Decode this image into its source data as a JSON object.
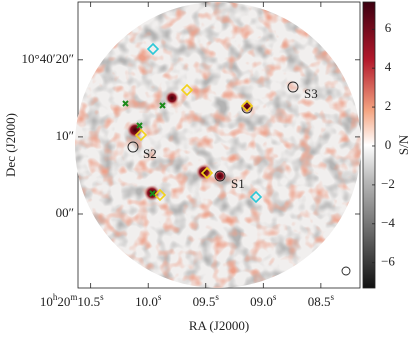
{
  "chart_data": {
    "type": "image",
    "xlabel": "RA (J2000)",
    "ylabel": "Dec (J2000)",
    "colorbar_label": "S/N",
    "xlim": [
      10.61,
      8.16
    ],
    "ylim": [
      -9.6,
      27.5
    ],
    "xticks": [
      {
        "value": 10.5,
        "label": "10h20m10.5s"
      },
      {
        "value": 10.0,
        "label": "10.0s"
      },
      {
        "value": 9.5,
        "label": "09.5s"
      },
      {
        "value": 9.0,
        "label": "09.0s"
      },
      {
        "value": 8.5,
        "label": "08.5s"
      }
    ],
    "yticks": [
      {
        "value": 20,
        "label": "10°40′20″"
      },
      {
        "value": 10,
        "label": "10″"
      },
      {
        "value": 0,
        "label": "00″"
      }
    ],
    "clim": [
      -7.3,
      7.4
    ],
    "cticks": [
      {
        "value": -6,
        "label": "−6"
      },
      {
        "value": -4,
        "label": "−4"
      },
      {
        "value": -2,
        "label": "−2"
      },
      0,
      2,
      4,
      6
    ],
    "annotations": [
      "S1",
      "S2",
      "S3"
    ]
  }
}
